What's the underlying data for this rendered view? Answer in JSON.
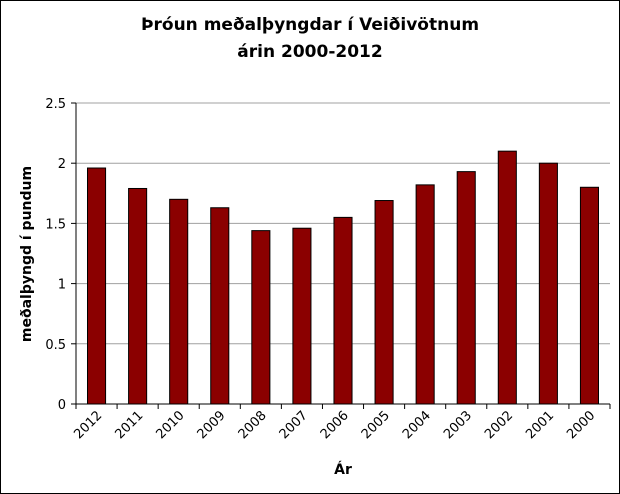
{
  "chart_data": {
    "type": "bar",
    "title": [
      "Þróun meðalþyngdar í Veiðivötnum",
      "árin 2000-2012"
    ],
    "y_label": "meðalþyngd í pundum",
    "x_label": "Ár",
    "categories": [
      "2012",
      "2011",
      "2010",
      "2009",
      "2008",
      "2007",
      "2006",
      "2005",
      "2004",
      "2003",
      "2002",
      "2001",
      "2000"
    ],
    "values": [
      1.96,
      1.79,
      1.7,
      1.63,
      1.44,
      1.46,
      1.55,
      1.69,
      1.82,
      1.93,
      2.1,
      2.0,
      1.8
    ],
    "color": "#8b0000",
    "ylim": [
      0,
      2.5
    ],
    "yticks": [
      0,
      0.5,
      1,
      1.5,
      2,
      2.5
    ],
    "grid": true
  }
}
